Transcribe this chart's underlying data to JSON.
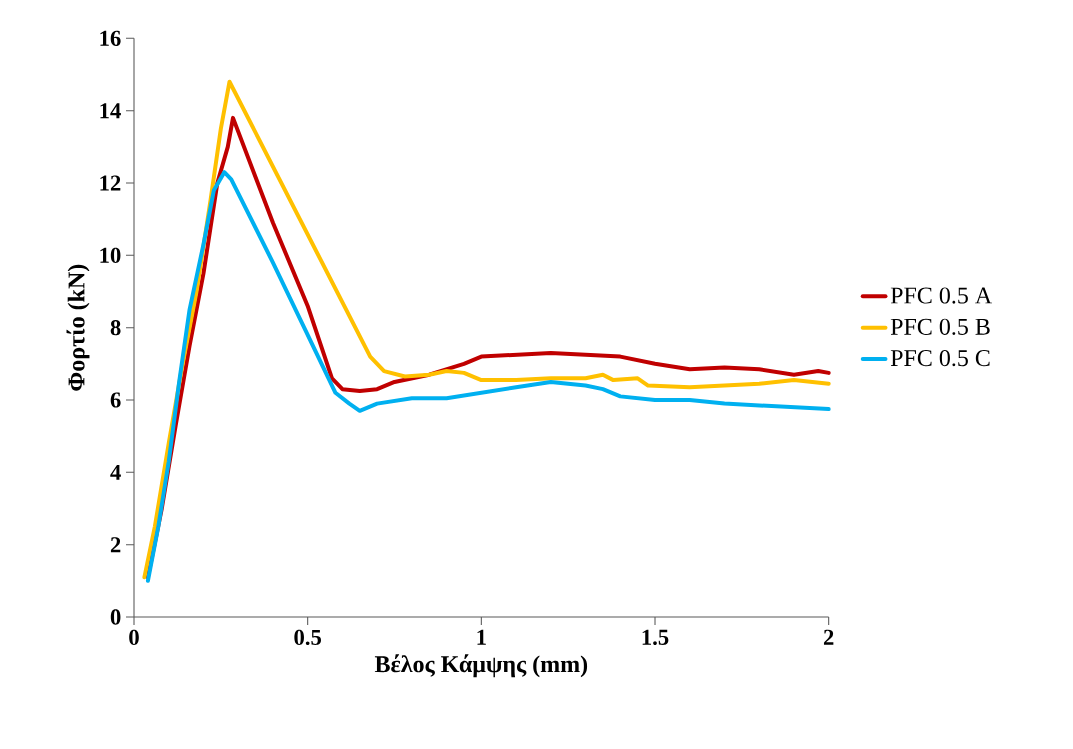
{
  "chart_data": {
    "type": "line",
    "xlabel": "Βέλος Κάμψης (mm)",
    "ylabel": "Φορτίο (kN)",
    "xlim": [
      0,
      2
    ],
    "ylim": [
      0,
      16
    ],
    "xticks": [
      0,
      0.5,
      1,
      1.5,
      2
    ],
    "yticks": [
      0,
      2,
      4,
      6,
      8,
      10,
      12,
      14,
      16
    ],
    "grid": false,
    "legend": "right",
    "marker": "none",
    "line_style": "solid",
    "series": [
      {
        "name": "PFC 0.5 A",
        "color": "#c00000",
        "x": [
          0.04,
          0.08,
          0.12,
          0.16,
          0.2,
          0.24,
          0.27,
          0.285,
          0.4,
          0.5,
          0.57,
          0.6,
          0.65,
          0.7,
          0.75,
          0.85,
          0.95,
          1.0,
          1.1,
          1.2,
          1.3,
          1.4,
          1.5,
          1.6,
          1.7,
          1.8,
          1.9,
          1.97,
          2.0
        ],
        "values": [
          1.1,
          3,
          5.3,
          7.5,
          9.5,
          12,
          13,
          13.8,
          10.9,
          8.6,
          6.6,
          6.3,
          6.25,
          6.3,
          6.5,
          6.7,
          7.0,
          7.2,
          7.25,
          7.3,
          7.25,
          7.2,
          7.0,
          6.85,
          6.9,
          6.85,
          6.7,
          6.8,
          6.75
        ]
      },
      {
        "name": "PFC 0.5 B",
        "color": "#ffc000",
        "x": [
          0.03,
          0.06,
          0.1,
          0.14,
          0.18,
          0.22,
          0.25,
          0.275,
          0.68,
          0.72,
          0.78,
          0.85,
          0.9,
          0.95,
          1.0,
          1.1,
          1.2,
          1.3,
          1.35,
          1.38,
          1.45,
          1.48,
          1.6,
          1.7,
          1.8,
          1.9,
          2.0
        ],
        "values": [
          1.1,
          2.5,
          4.8,
          7,
          9,
          11.5,
          13.5,
          14.8,
          7.2,
          6.8,
          6.65,
          6.7,
          6.8,
          6.75,
          6.55,
          6.55,
          6.6,
          6.6,
          6.7,
          6.55,
          6.6,
          6.4,
          6.35,
          6.4,
          6.45,
          6.55,
          6.45
        ]
      },
      {
        "name": "PFC 0.5 C",
        "color": "#00b0f0",
        "x": [
          0.04,
          0.07,
          0.1,
          0.13,
          0.16,
          0.2,
          0.23,
          0.26,
          0.28,
          0.4,
          0.5,
          0.58,
          0.62,
          0.65,
          0.7,
          0.8,
          0.9,
          1.0,
          1.1,
          1.2,
          1.3,
          1.35,
          1.4,
          1.5,
          1.6,
          1.7,
          1.8,
          1.9,
          2.0
        ],
        "values": [
          1.0,
          2.5,
          4.3,
          6.5,
          8.5,
          10.3,
          11.8,
          12.3,
          12.1,
          9.8,
          7.8,
          6.2,
          5.9,
          5.7,
          5.9,
          6.05,
          6.05,
          6.2,
          6.35,
          6.5,
          6.4,
          6.3,
          6.1,
          6.0,
          6.0,
          5.9,
          5.85,
          5.8,
          5.75
        ]
      }
    ]
  }
}
